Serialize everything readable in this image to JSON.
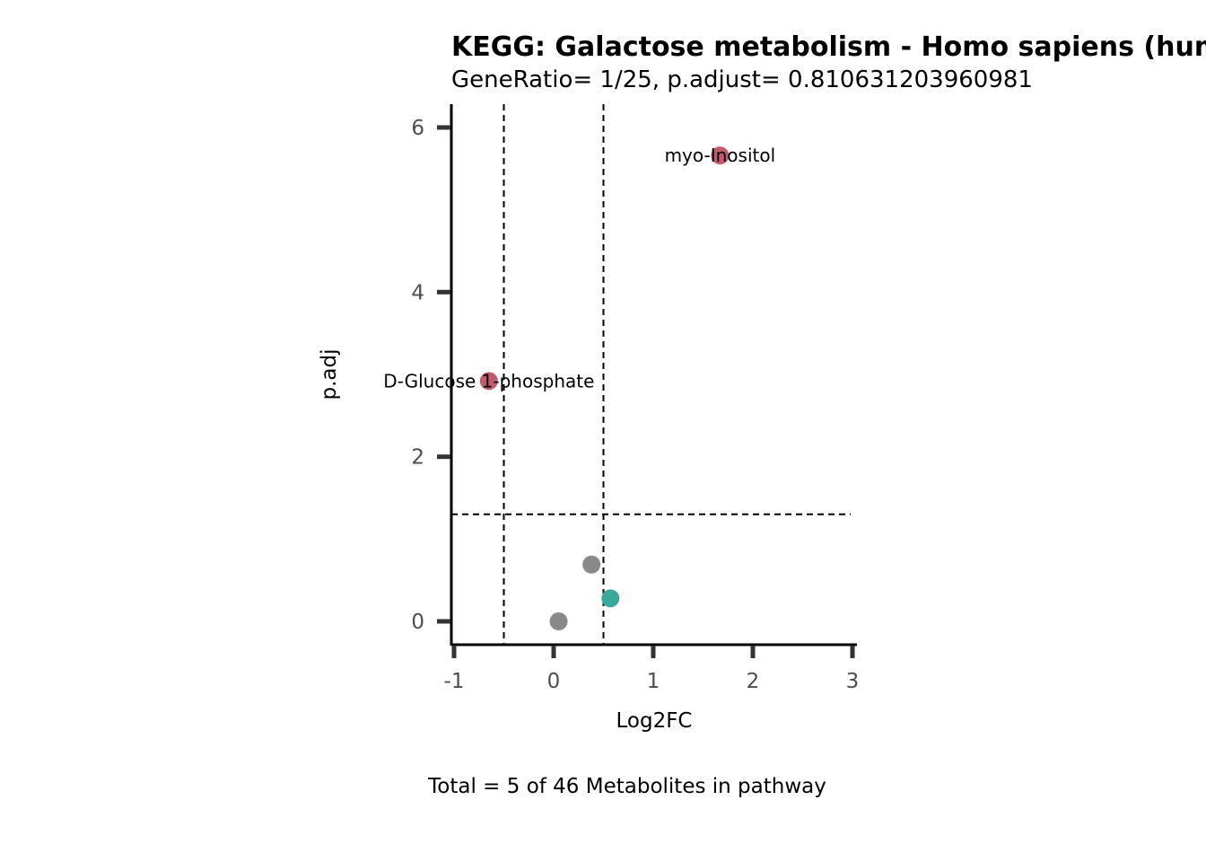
{
  "chart_data": {
    "type": "scatter",
    "title": "KEGG: Galactose metabolism - Homo sapiens (human)",
    "subtitle": "GeneRatio= 1/25, p.adjust= 0.810631203960981",
    "xlabel": "Log2FC",
    "ylabel": "p.adj",
    "caption": "Total = 5 of 46 Metabolites in pathway",
    "xlim": [
      -1.02,
      3.05
    ],
    "ylim": [
      -0.3,
      6.28
    ],
    "xticks": [
      -1,
      0,
      1,
      2,
      3
    ],
    "xtick_labels": [
      "-1",
      "0",
      "1",
      "2",
      "3"
    ],
    "yticks": [
      0,
      2,
      4,
      6
    ],
    "ytick_labels": [
      "0",
      "2",
      "4",
      "6"
    ],
    "vlines": [
      -0.5,
      0.5
    ],
    "hlines": [
      1.301
    ],
    "grid": false,
    "points": [
      {
        "x": 1.67,
        "y": 5.66,
        "label": "myo-Inositol",
        "color": "#c25b6e"
      },
      {
        "x": -0.65,
        "y": 2.92,
        "label": "D-Glucose 1-phosphate",
        "color": "#c25b6e"
      },
      {
        "x": 0.38,
        "y": 0.69,
        "label": "",
        "color": "#898989"
      },
      {
        "x": 0.57,
        "y": 0.28,
        "label": "",
        "color": "#3aa89a"
      },
      {
        "x": 0.05,
        "y": 0.0,
        "label": "",
        "color": "#898989"
      }
    ]
  }
}
